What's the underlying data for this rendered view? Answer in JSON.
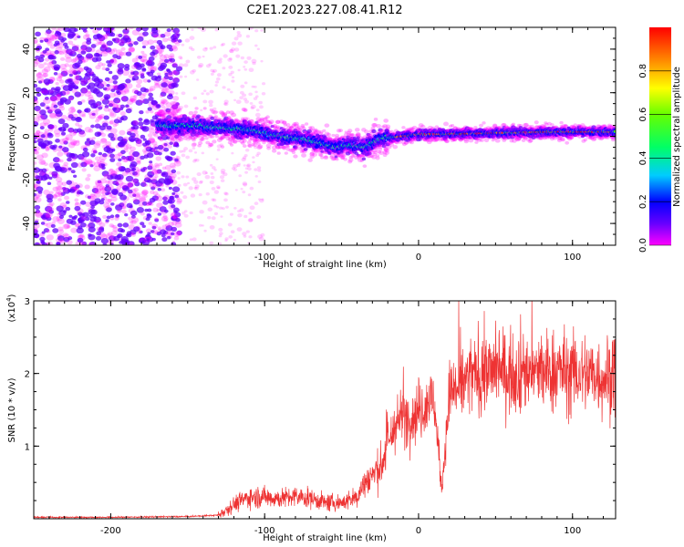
{
  "title": "C2E1.2023.227.08.41.R12",
  "chart_data": [
    {
      "type": "heatmap",
      "xlabel": "Height of straight line (km)",
      "ylabel": "Frequency (Hz)",
      "xlim": [
        -250,
        128
      ],
      "ylim": [
        -50,
        50
      ],
      "xticks": [
        -200,
        -100,
        0,
        100
      ],
      "yticks": [
        -40,
        -20,
        0,
        20,
        40
      ],
      "grid": false,
      "colormap": [
        "#ff00ff",
        "#6600ff",
        "#0000ff",
        "#00ccff",
        "#00ff66",
        "#66ff00",
        "#ffff00",
        "#ff8800",
        "#ff0000"
      ],
      "ridge": {
        "x": [
          -170,
          -150,
          -130,
          -110,
          -90,
          -70,
          -55,
          -45,
          -35,
          -25,
          -10,
          0,
          20,
          50,
          80,
          110,
          128
        ],
        "freq": [
          5,
          5,
          4,
          3,
          0,
          -2,
          -5,
          -4,
          -5,
          -1,
          0,
          1,
          1,
          1.5,
          2,
          2,
          2
        ]
      }
    },
    {
      "type": "colorbar",
      "label": "Normalized spectral amplitude",
      "range": [
        0,
        1
      ],
      "ticks": [
        "0.0",
        "0.2",
        "0.4",
        "0.6",
        "0.8"
      ],
      "tick_values": [
        0,
        0.2,
        0.4,
        0.6,
        0.8
      ]
    },
    {
      "type": "line",
      "xlabel": "Height of straight line (km)",
      "ylabel": "SNR (10 * v/v)",
      "scale_label_prefix": "(x10",
      "scale_label_exp": "4",
      "scale_label_suffix": ")",
      "xlim": [
        -250,
        128
      ],
      "ylim": [
        0,
        3
      ],
      "xticks": [
        -200,
        -100,
        0,
        100
      ],
      "yticks": [
        1,
        2,
        3
      ],
      "series": [
        {
          "color": "#ee3333",
          "x": [
            -250,
            -200,
            -150,
            -130,
            -120,
            -110,
            -100,
            -90,
            -80,
            -70,
            -60,
            -50,
            -40,
            -35,
            -30,
            -25,
            -20,
            -15,
            -10,
            -5,
            0,
            10,
            15,
            20,
            30,
            40,
            50,
            60,
            70,
            80,
            90,
            100,
            110,
            120,
            128
          ],
          "y": [
            0.02,
            0.02,
            0.03,
            0.05,
            0.2,
            0.3,
            0.3,
            0.28,
            0.3,
            0.28,
            0.22,
            0.22,
            0.3,
            0.5,
            0.6,
            0.7,
            1.0,
            1.3,
            1.4,
            1.4,
            1.5,
            1.65,
            0.4,
            1.7,
            1.9,
            2.0,
            2.05,
            2.0,
            2.05,
            2.0,
            2.05,
            2.0,
            2.0,
            1.95,
            2.0
          ]
        }
      ]
    }
  ]
}
